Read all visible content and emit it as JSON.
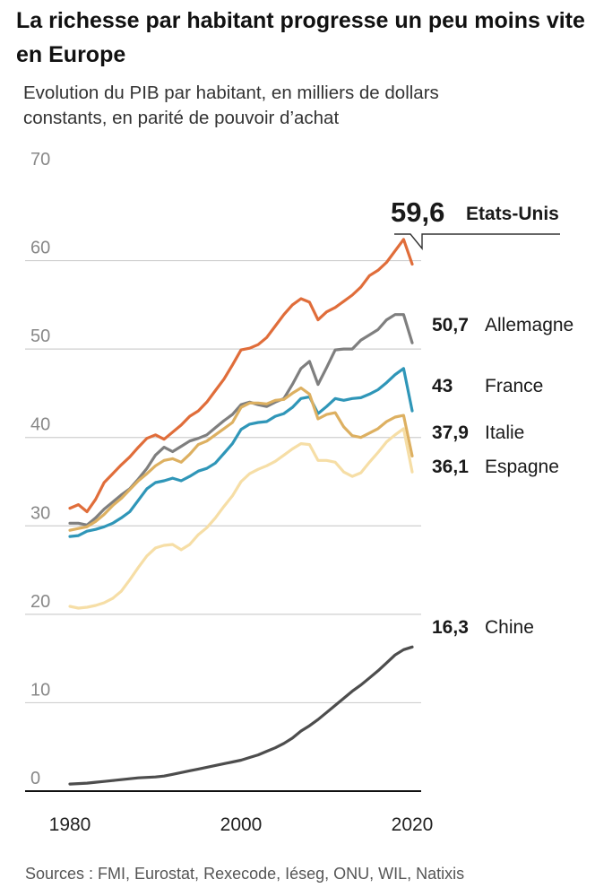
{
  "title": "La richesse par habitant progresse un peu moins vite en Europe",
  "subtitle": "Evolution du PIB par habitant, en milliers de dollars constants, en parité de pouvoir d’achat",
  "source": "Sources : FMI, Eurostat, Rexecode, Iéseg, ONU, WIL, Natixis",
  "chart_data": {
    "type": "line",
    "title": "La richesse par habitant progresse un peu moins vite en Europe",
    "subtitle": "Evolution du PIB par habitant, en milliers de dollars constants, en parité de pouvoir d’achat",
    "xlim": [
      1979,
      2021
    ],
    "ylim": [
      0,
      70
    ],
    "y_ticks": [
      "0",
      "10",
      "20",
      "30",
      "40",
      "50",
      "60",
      "70"
    ],
    "x_ticks": [
      "1980",
      "2000",
      "2020"
    ],
    "grid": true,
    "legend": "direct labels at line ends",
    "series": [
      {
        "name": "Etats-Unis",
        "end_label": "59,6",
        "color": "#e06d3a",
        "x": [
          1980,
          1981,
          1982,
          1983,
          1984,
          1985,
          1986,
          1987,
          1988,
          1989,
          1990,
          1991,
          1992,
          1993,
          1994,
          1995,
          1996,
          1997,
          1998,
          1999,
          2000,
          2001,
          2002,
          2003,
          2004,
          2005,
          2006,
          2007,
          2008,
          2009,
          2010,
          2011,
          2012,
          2013,
          2014,
          2015,
          2016,
          2017,
          2018,
          2019,
          2020
        ],
        "y": [
          32.0,
          32.4,
          31.6,
          33.0,
          34.9,
          35.9,
          36.9,
          37.8,
          38.9,
          39.9,
          40.3,
          39.8,
          40.6,
          41.4,
          42.4,
          43.0,
          44.0,
          45.3,
          46.6,
          48.2,
          49.9,
          50.1,
          50.5,
          51.3,
          52.6,
          53.9,
          55.0,
          55.7,
          55.3,
          53.3,
          54.2,
          54.7,
          55.4,
          56.1,
          57.0,
          58.3,
          58.9,
          59.8,
          61.1,
          62.4,
          59.6
        ]
      },
      {
        "name": "Allemagne",
        "end_label": "50,7",
        "color": "#7f7f7f",
        "x": [
          1980,
          1981,
          1982,
          1983,
          1984,
          1985,
          1986,
          1987,
          1988,
          1989,
          1990,
          1991,
          1992,
          1993,
          1994,
          1995,
          1996,
          1997,
          1998,
          1999,
          2000,
          2001,
          2002,
          2003,
          2004,
          2005,
          2006,
          2007,
          2008,
          2009,
          2010,
          2011,
          2012,
          2013,
          2014,
          2015,
          2016,
          2017,
          2018,
          2019,
          2020
        ],
        "y": [
          30.3,
          30.3,
          30.1,
          30.9,
          31.9,
          32.7,
          33.5,
          34.2,
          35.3,
          36.5,
          38.0,
          38.9,
          38.4,
          39.0,
          39.6,
          39.9,
          40.3,
          41.1,
          41.9,
          42.6,
          43.7,
          44.0,
          43.7,
          43.5,
          44.0,
          44.4,
          46.0,
          47.8,
          48.6,
          46.0,
          47.9,
          49.9,
          50.0,
          50.0,
          51.0,
          51.6,
          52.2,
          53.3,
          53.9,
          53.9,
          50.7
        ]
      },
      {
        "name": "France",
        "end_label": "43",
        "color": "#2f96b8",
        "x": [
          1980,
          1981,
          1982,
          1983,
          1984,
          1985,
          1986,
          1987,
          1988,
          1989,
          1990,
          1991,
          1992,
          1993,
          1994,
          1995,
          1996,
          1997,
          1998,
          1999,
          2000,
          2001,
          2002,
          2003,
          2004,
          2005,
          2006,
          2007,
          2008,
          2009,
          2010,
          2011,
          2012,
          2013,
          2014,
          2015,
          2016,
          2017,
          2018,
          2019,
          2020
        ],
        "y": [
          28.8,
          28.9,
          29.4,
          29.6,
          29.9,
          30.3,
          30.9,
          31.6,
          32.9,
          34.2,
          34.9,
          35.1,
          35.4,
          35.1,
          35.6,
          36.2,
          36.5,
          37.1,
          38.2,
          39.3,
          40.9,
          41.5,
          41.7,
          41.8,
          42.4,
          42.7,
          43.4,
          44.4,
          44.6,
          42.7,
          43.5,
          44.4,
          44.2,
          44.4,
          44.5,
          44.9,
          45.4,
          46.2,
          47.1,
          47.8,
          43.0
        ]
      },
      {
        "name": "Italie",
        "end_label": "37,9",
        "color": "#ddb061",
        "x": [
          1980,
          1981,
          1982,
          1983,
          1984,
          1985,
          1986,
          1987,
          1988,
          1989,
          1990,
          1991,
          1992,
          1993,
          1994,
          1995,
          1996,
          1997,
          1998,
          1999,
          2000,
          2001,
          2002,
          2003,
          2004,
          2005,
          2006,
          2007,
          2008,
          2009,
          2010,
          2011,
          2012,
          2013,
          2014,
          2015,
          2016,
          2017,
          2018,
          2019,
          2020
        ],
        "y": [
          29.5,
          29.7,
          29.9,
          30.5,
          31.3,
          32.3,
          33.1,
          34.1,
          35.1,
          35.9,
          36.8,
          37.4,
          37.6,
          37.2,
          38.1,
          39.2,
          39.6,
          40.3,
          41.0,
          41.7,
          43.4,
          43.9,
          43.9,
          43.8,
          44.2,
          44.3,
          45.0,
          45.6,
          44.9,
          42.1,
          42.6,
          42.8,
          41.2,
          40.2,
          40.0,
          40.5,
          41.0,
          41.8,
          42.3,
          42.5,
          37.9
        ]
      },
      {
        "name": "Espagne",
        "end_label": "36,1",
        "color": "#f6dea6",
        "x": [
          1980,
          1981,
          1982,
          1983,
          1984,
          1985,
          1986,
          1987,
          1988,
          1989,
          1990,
          1991,
          1992,
          1993,
          1994,
          1995,
          1996,
          1997,
          1998,
          1999,
          2000,
          2001,
          2002,
          2003,
          2004,
          2005,
          2006,
          2007,
          2008,
          2009,
          2010,
          2011,
          2012,
          2013,
          2014,
          2015,
          2016,
          2017,
          2018,
          2019,
          2020
        ],
        "y": [
          20.9,
          20.7,
          20.8,
          21.0,
          21.3,
          21.8,
          22.6,
          23.9,
          25.3,
          26.6,
          27.5,
          27.8,
          27.9,
          27.3,
          27.9,
          29.0,
          29.8,
          30.9,
          32.2,
          33.4,
          35.0,
          35.9,
          36.4,
          36.8,
          37.3,
          38.0,
          38.7,
          39.3,
          39.2,
          37.4,
          37.4,
          37.2,
          36.1,
          35.6,
          36.0,
          37.2,
          38.3,
          39.5,
          40.3,
          41.0,
          36.1
        ]
      },
      {
        "name": "Chine",
        "end_label": "16,3",
        "color": "#4d4d4d",
        "x": [
          1980,
          1981,
          1982,
          1983,
          1984,
          1985,
          1986,
          1987,
          1988,
          1989,
          1990,
          1991,
          1992,
          1993,
          1994,
          1995,
          1996,
          1997,
          1998,
          1999,
          2000,
          2001,
          2002,
          2003,
          2004,
          2005,
          2006,
          2007,
          2008,
          2009,
          2010,
          2011,
          2012,
          2013,
          2014,
          2015,
          2016,
          2017,
          2018,
          2019,
          2020
        ],
        "y": [
          0.8,
          0.85,
          0.9,
          1.0,
          1.1,
          1.2,
          1.3,
          1.4,
          1.5,
          1.55,
          1.6,
          1.7,
          1.9,
          2.1,
          2.3,
          2.5,
          2.7,
          2.9,
          3.1,
          3.3,
          3.5,
          3.8,
          4.1,
          4.5,
          4.9,
          5.4,
          6.0,
          6.8,
          7.4,
          8.1,
          8.9,
          9.7,
          10.5,
          11.3,
          12.0,
          12.8,
          13.6,
          14.5,
          15.4,
          16.0,
          16.3
        ]
      }
    ]
  }
}
